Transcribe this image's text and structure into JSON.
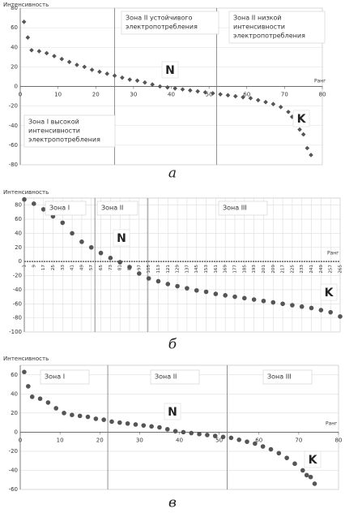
{
  "chart_data": [
    {
      "type": "scatter",
      "marker": "diamond",
      "color": "#555",
      "y_label": "Интенсивность",
      "x_label": "Ранг",
      "caption": "а",
      "x": [
        1,
        2,
        3,
        5,
        7,
        9,
        11,
        13,
        15,
        17,
        19,
        21,
        23,
        25,
        27,
        29,
        31,
        33,
        35,
        37,
        39,
        41,
        43,
        45,
        47,
        49,
        51,
        53,
        55,
        57,
        59,
        61,
        63,
        65,
        67,
        69,
        71,
        72,
        73,
        74,
        75,
        76,
        77
      ],
      "values": [
        66,
        50,
        37,
        36,
        34,
        31,
        28,
        25,
        22,
        20,
        17,
        15,
        13,
        11,
        9,
        7,
        6,
        4,
        2,
        0,
        -1,
        -2,
        -3,
        -4,
        -5,
        -6,
        -7,
        -8,
        -9,
        -10,
        -11,
        -12,
        -14,
        -16,
        -18,
        -21,
        -26,
        -31,
        -38,
        -44,
        -49,
        -63,
        -70
      ],
      "xlim": [
        0,
        80
      ],
      "ylim": [
        -80,
        80
      ],
      "xticks": [
        0,
        10,
        20,
        30,
        40,
        50,
        60,
        70,
        80
      ],
      "yticks": [
        -80,
        -60,
        -40,
        -20,
        0,
        20,
        40,
        60,
        80
      ],
      "grid": true,
      "xgrid": false,
      "zone_lines": [
        25,
        52
      ],
      "zone_labels": [
        [
          "Зона II устойчивого",
          "электропотребления"
        ],
        [
          "Зона II низкой",
          "интенсивности",
          "электропотребления"
        ],
        [
          "Зона I высокой",
          "интенсивности",
          "электропотребления"
        ]
      ],
      "annotations": [
        "N",
        "K"
      ]
    },
    {
      "type": "scatter",
      "marker": "circle",
      "color": "#555",
      "y_label": "Интенсивность",
      "x_label": "Ранг",
      "caption": "б",
      "x": [
        1,
        9,
        17,
        25,
        33,
        41,
        49,
        57,
        65,
        73,
        81,
        89,
        97,
        105,
        113,
        121,
        129,
        137,
        145,
        153,
        161,
        169,
        177,
        185,
        193,
        201,
        209,
        217,
        225,
        233,
        241,
        249,
        257,
        265
      ],
      "values": [
        88,
        82,
        74,
        64,
        55,
        40,
        28,
        20,
        12,
        5,
        -1,
        -8,
        -17,
        -24,
        -28,
        -32,
        -35,
        -38,
        -41,
        -43,
        -46,
        -48,
        -50,
        -52,
        -54,
        -56,
        -58,
        -60,
        -62,
        -64,
        -66,
        -69,
        -72,
        -78
      ],
      "xlim": [
        1,
        265
      ],
      "ylim": [
        -100,
        90
      ],
      "xticks": [
        1,
        9,
        17,
        25,
        33,
        41,
        49,
        57,
        65,
        73,
        81,
        89,
        97,
        105,
        113,
        121,
        129,
        137,
        145,
        153,
        161,
        169,
        177,
        185,
        193,
        201,
        209,
        217,
        225,
        233,
        241,
        249,
        257,
        265
      ],
      "yticks": [
        -100,
        -80,
        -60,
        -40,
        -20,
        0,
        20,
        40,
        60,
        80
      ],
      "grid": true,
      "xgrid": true,
      "zone_lines": [
        60,
        104
      ],
      "zone_labels": [
        [
          "Зона I"
        ],
        [
          "Зона II"
        ],
        [
          "Зона III"
        ]
      ],
      "annotations": [
        "N",
        "K"
      ]
    },
    {
      "type": "scatter",
      "marker": "circle",
      "color": "#555",
      "y_label": "Интенсивность",
      "x_label": "Ранг",
      "caption": "в",
      "x": [
        1,
        2,
        3,
        5,
        7,
        9,
        11,
        13,
        15,
        17,
        19,
        21,
        23,
        25,
        27,
        29,
        31,
        33,
        35,
        37,
        39,
        41,
        43,
        45,
        47,
        49,
        51,
        53,
        55,
        57,
        59,
        61,
        63,
        65,
        67,
        69,
        71,
        72,
        73,
        74
      ],
      "values": [
        63,
        48,
        37,
        35,
        31,
        25,
        20,
        18,
        17,
        16,
        14,
        13,
        11,
        10,
        9,
        8,
        7,
        6,
        5,
        3,
        1,
        0,
        -1,
        -2,
        -3,
        -4,
        -5,
        -6,
        -8,
        -10,
        -12,
        -15,
        -18,
        -22,
        -27,
        -33,
        -40,
        -45,
        -47,
        -54
      ],
      "xlim": [
        0,
        80
      ],
      "ylim": [
        -60,
        70
      ],
      "xticks": [
        0,
        10,
        20,
        30,
        40,
        50,
        60,
        70,
        80
      ],
      "yticks": [
        -60,
        -40,
        -20,
        0,
        20,
        40,
        60
      ],
      "grid": true,
      "xgrid": false,
      "zone_lines": [
        22,
        52
      ],
      "zone_labels": [
        [
          "Зона I"
        ],
        [
          "Зона II"
        ],
        [
          "Зона III"
        ]
      ],
      "annotations": [
        "N",
        "K"
      ]
    }
  ]
}
